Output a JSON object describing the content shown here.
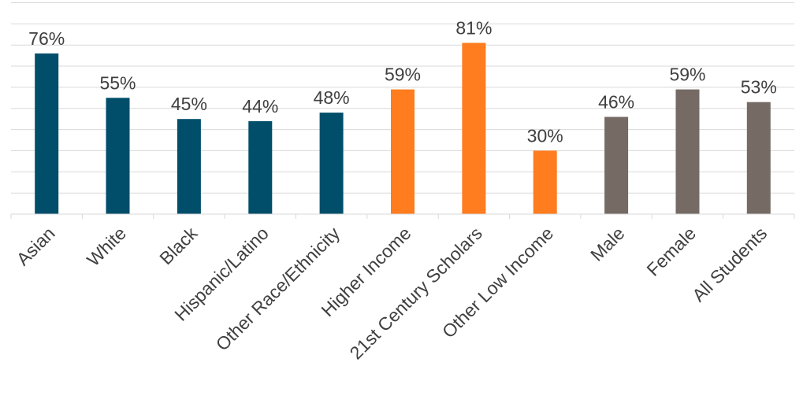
{
  "chart_data": {
    "type": "bar",
    "categories": [
      "Asian",
      "White",
      "Black",
      "Hispanic/Latino",
      "Other Race/Ethnicity",
      "Higher Income",
      "21st Century Scholars",
      "Other Low Income",
      "Male",
      "Female",
      "All Students"
    ],
    "values": [
      76,
      55,
      45,
      44,
      48,
      59,
      81,
      30,
      46,
      59,
      53
    ],
    "data_labels": [
      "76%",
      "55%",
      "45%",
      "44%",
      "48%",
      "59%",
      "81%",
      "30%",
      "46%",
      "59%",
      "53%"
    ],
    "bar_colors": [
      "#004e6a",
      "#004e6a",
      "#004e6a",
      "#004e6a",
      "#004e6a",
      "#ff7c1f",
      "#ff7c1f",
      "#ff7c1f",
      "#756a64",
      "#756a64",
      "#756a64"
    ],
    "ylim": [
      0,
      100
    ],
    "y_gridline_step": 10,
    "grid": true,
    "y_axis_labels_shown": false,
    "legend": "none"
  }
}
